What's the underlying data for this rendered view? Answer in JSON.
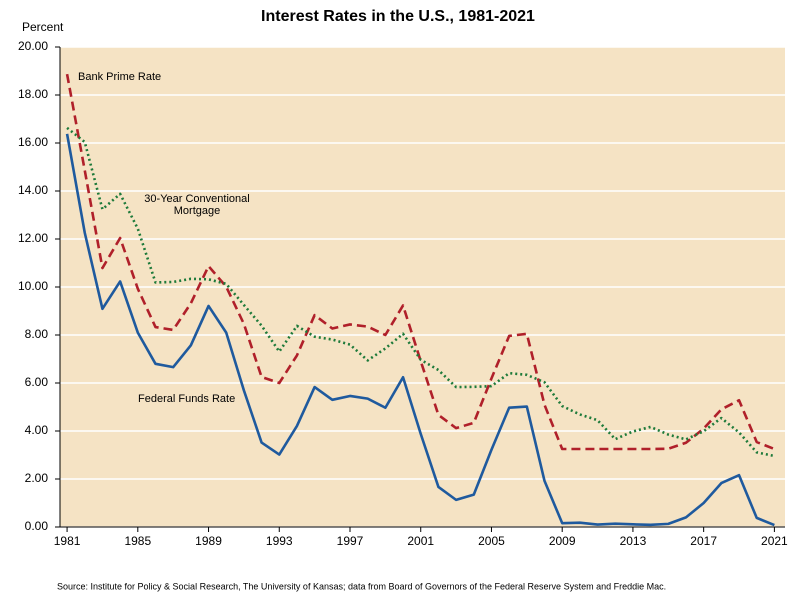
{
  "chart_data": {
    "type": "line",
    "title": "Interest Rates in the U.S., 1981-2021",
    "y_label": "Percent",
    "source": "Source: Institute for Policy & Social Research, The University of Kansas; data from Board of Governors of the Federal Reserve System and Freddie Mac.",
    "x": [
      1981,
      1982,
      1983,
      1984,
      1985,
      1986,
      1987,
      1988,
      1989,
      1990,
      1991,
      1992,
      1993,
      1994,
      1995,
      1996,
      1997,
      1998,
      1999,
      2000,
      2001,
      2002,
      2003,
      2004,
      2005,
      2006,
      2007,
      2008,
      2009,
      2010,
      2011,
      2012,
      2013,
      2014,
      2015,
      2016,
      2017,
      2018,
      2019,
      2020,
      2021
    ],
    "series": [
      {
        "name": "Federal Funds Rate",
        "color": "#1f5a9e",
        "style": "solid",
        "values": [
          16.38,
          12.26,
          9.09,
          10.23,
          8.1,
          6.8,
          6.66,
          7.57,
          9.21,
          8.1,
          5.69,
          3.52,
          3.02,
          4.21,
          5.83,
          5.3,
          5.46,
          5.35,
          4.97,
          6.24,
          3.88,
          1.67,
          1.13,
          1.35,
          3.22,
          4.97,
          5.02,
          1.92,
          0.16,
          0.18,
          0.1,
          0.14,
          0.11,
          0.09,
          0.13,
          0.4,
          1.0,
          1.83,
          2.16,
          0.38,
          0.08
        ]
      },
      {
        "name": "Bank Prime Rate",
        "color": "#b0202a",
        "style": "dashed",
        "values": [
          18.87,
          14.86,
          10.79,
          12.04,
          9.93,
          8.33,
          8.21,
          9.32,
          10.87,
          10.01,
          8.46,
          6.25,
          6.0,
          7.15,
          8.83,
          8.27,
          8.44,
          8.35,
          8.0,
          9.23,
          6.91,
          4.67,
          4.12,
          4.34,
          6.19,
          7.96,
          8.05,
          5.09,
          3.25,
          3.25,
          3.25,
          3.25,
          3.25,
          3.25,
          3.26,
          3.51,
          4.1,
          4.9,
          5.28,
          3.54,
          3.25
        ]
      },
      {
        "name": "30-Year Conventional Mortgage",
        "color": "#1e7a3a",
        "style": "dotted",
        "values": [
          16.63,
          16.04,
          13.24,
          13.88,
          12.43,
          10.19,
          10.21,
          10.34,
          10.32,
          10.13,
          9.25,
          8.39,
          7.31,
          8.38,
          7.93,
          7.81,
          7.6,
          6.94,
          7.44,
          8.05,
          6.97,
          6.54,
          5.83,
          5.84,
          5.87,
          6.41,
          6.34,
          6.03,
          5.04,
          4.69,
          4.45,
          3.66,
          3.98,
          4.17,
          3.85,
          3.65,
          3.99,
          4.54,
          3.94,
          3.11,
          2.96
        ]
      }
    ],
    "xlim": [
      1980.6,
      2021.6
    ],
    "xticks": [
      1981,
      1985,
      1989,
      1993,
      1997,
      2001,
      2005,
      2009,
      2013,
      2017,
      2021
    ],
    "ylim": [
      0,
      20
    ],
    "yticks": [
      {
        "value": 0,
        "label": "0.00"
      },
      {
        "value": 2,
        "label": "2.00"
      },
      {
        "value": 4,
        "label": "4.00"
      },
      {
        "value": 6,
        "label": "6.00"
      },
      {
        "value": 8,
        "label": "8.00"
      },
      {
        "value": 10,
        "label": "10.00"
      },
      {
        "value": 12,
        "label": "12.00"
      },
      {
        "value": 14,
        "label": "14.00"
      },
      {
        "value": 16,
        "label": "16.00"
      },
      {
        "value": 18,
        "label": "18.00"
      },
      {
        "value": 20,
        "label": "20.00"
      }
    ],
    "grid": true,
    "background": "#f5e3c4"
  }
}
